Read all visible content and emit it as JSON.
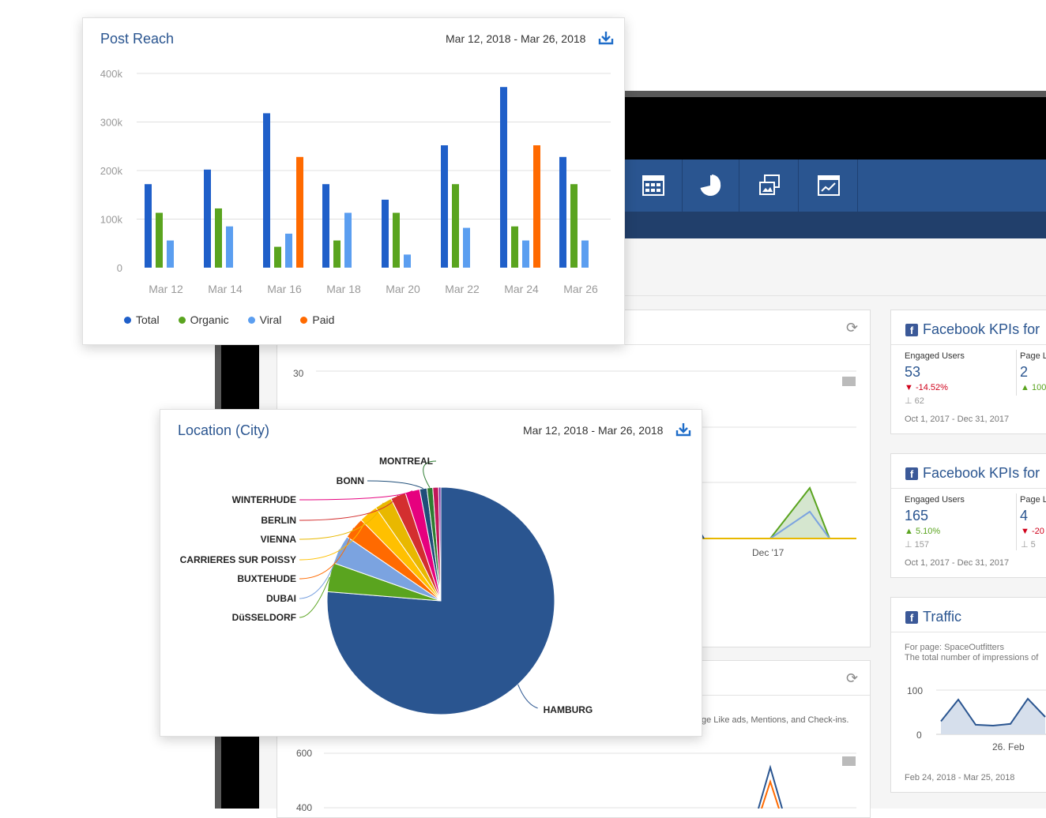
{
  "post_reach": {
    "title": "Post Reach",
    "date_range": "Mar 12, 2018 - Mar 26, 2018",
    "download_icon": "download-icon",
    "legend": [
      "Total",
      "Organic",
      "Viral",
      "Paid"
    ]
  },
  "location": {
    "title": "Location (City)",
    "date_range": "Mar 12, 2018 - Mar 26, 2018",
    "download_icon": "download-icon"
  },
  "nav_icons": [
    "table-icon",
    "pie-chart-icon",
    "media-icon",
    "line-chart-icon"
  ],
  "bg_chart1": {
    "y_label": "30",
    "x_label": "Dec '17"
  },
  "bg_chart2": {
    "caption": "ge Like ads, Mentions, and Check-ins.",
    "y_label_top": "600",
    "y_label_bottom": "400"
  },
  "kpi1": {
    "title": "Facebook KPIs for",
    "metric1_label": "Engaged Users",
    "metric1_value": "53",
    "metric1_change": "-14.52%",
    "metric1_prev": "62",
    "metric2_label": "Page L",
    "metric2_value": "2",
    "metric2_change": "100",
    "date_range": "Oct 1, 2017 - Dec 31, 2017"
  },
  "kpi2": {
    "title": "Facebook KPIs for",
    "metric1_label": "Engaged Users",
    "metric1_value": "165",
    "metric1_change": "5.10%",
    "metric1_prev": "157",
    "metric2_label": "Page L",
    "metric2_value": "4",
    "metric2_change": "-20",
    "metric2_prev": "5",
    "date_range": "Oct 1, 2017 - Dec 31, 2017"
  },
  "traffic": {
    "title": "Traffic",
    "subtitle1": "For page: SpaceOutfitters",
    "subtitle2": "The total number of impressions of",
    "y_top": "100",
    "y_bottom": "0",
    "x_label": "26. Feb",
    "date_range": "Feb 24, 2018 - Mar 25, 2018",
    "values": [
      30,
      80,
      22,
      20,
      24,
      82,
      40
    ]
  },
  "colors": {
    "total": "#1f5fc9",
    "organic": "#5aa41f",
    "viral": "#5b9ef0",
    "paid": "#ff6a00",
    "brand": "#2a5590",
    "negative": "#d0021b",
    "positive": "#5aa41f"
  },
  "chart_data": [
    {
      "type": "bar",
      "title": "Post Reach",
      "categories": [
        "Mar 12",
        "Mar 14",
        "Mar 16",
        "Mar 18",
        "Mar 20",
        "Mar 22",
        "Mar 24",
        "Mar 26"
      ],
      "ylim": [
        0,
        400000
      ],
      "yticks": [
        "0",
        "100k",
        "200k",
        "300k",
        "400k"
      ],
      "series": [
        {
          "name": "Total",
          "values": [
            172000,
            202000,
            318000,
            172000,
            140000,
            252000,
            372000,
            228000
          ]
        },
        {
          "name": "Organic",
          "values": [
            113000,
            122000,
            43000,
            56000,
            113000,
            172000,
            85000,
            172000
          ]
        },
        {
          "name": "Viral",
          "values": [
            56000,
            85000,
            70000,
            113000,
            27000,
            82000,
            56000,
            56000
          ]
        },
        {
          "name": "Paid",
          "values": [
            0,
            0,
            228000,
            0,
            0,
            0,
            252000,
            0
          ]
        }
      ],
      "legend_position": "bottom-left",
      "grid": true
    },
    {
      "type": "pie",
      "title": "Location (City)",
      "labels": [
        "HAMBURG",
        "DüSSELDORF",
        "DUBAI",
        "BUXTEHUDE",
        "CARRIERES SUR POISSY",
        "VIENNA",
        "BERLIN",
        "WINTERHUDE",
        "BONN",
        "MONTREAL",
        "",
        ""
      ],
      "values": [
        74,
        4,
        4,
        3,
        2.6,
        2.4,
        2.1,
        2,
        1,
        0.8,
        0.8,
        0.3
      ],
      "colors": [
        "#2a5590",
        "#5aa41f",
        "#7ba3e0",
        "#ff6a00",
        "#ffc000",
        "#e8b800",
        "#d32f2f",
        "#e6007e",
        "#1f4e79",
        "#2e7d32",
        "#c2185b",
        "#6a1b9a"
      ]
    }
  ]
}
